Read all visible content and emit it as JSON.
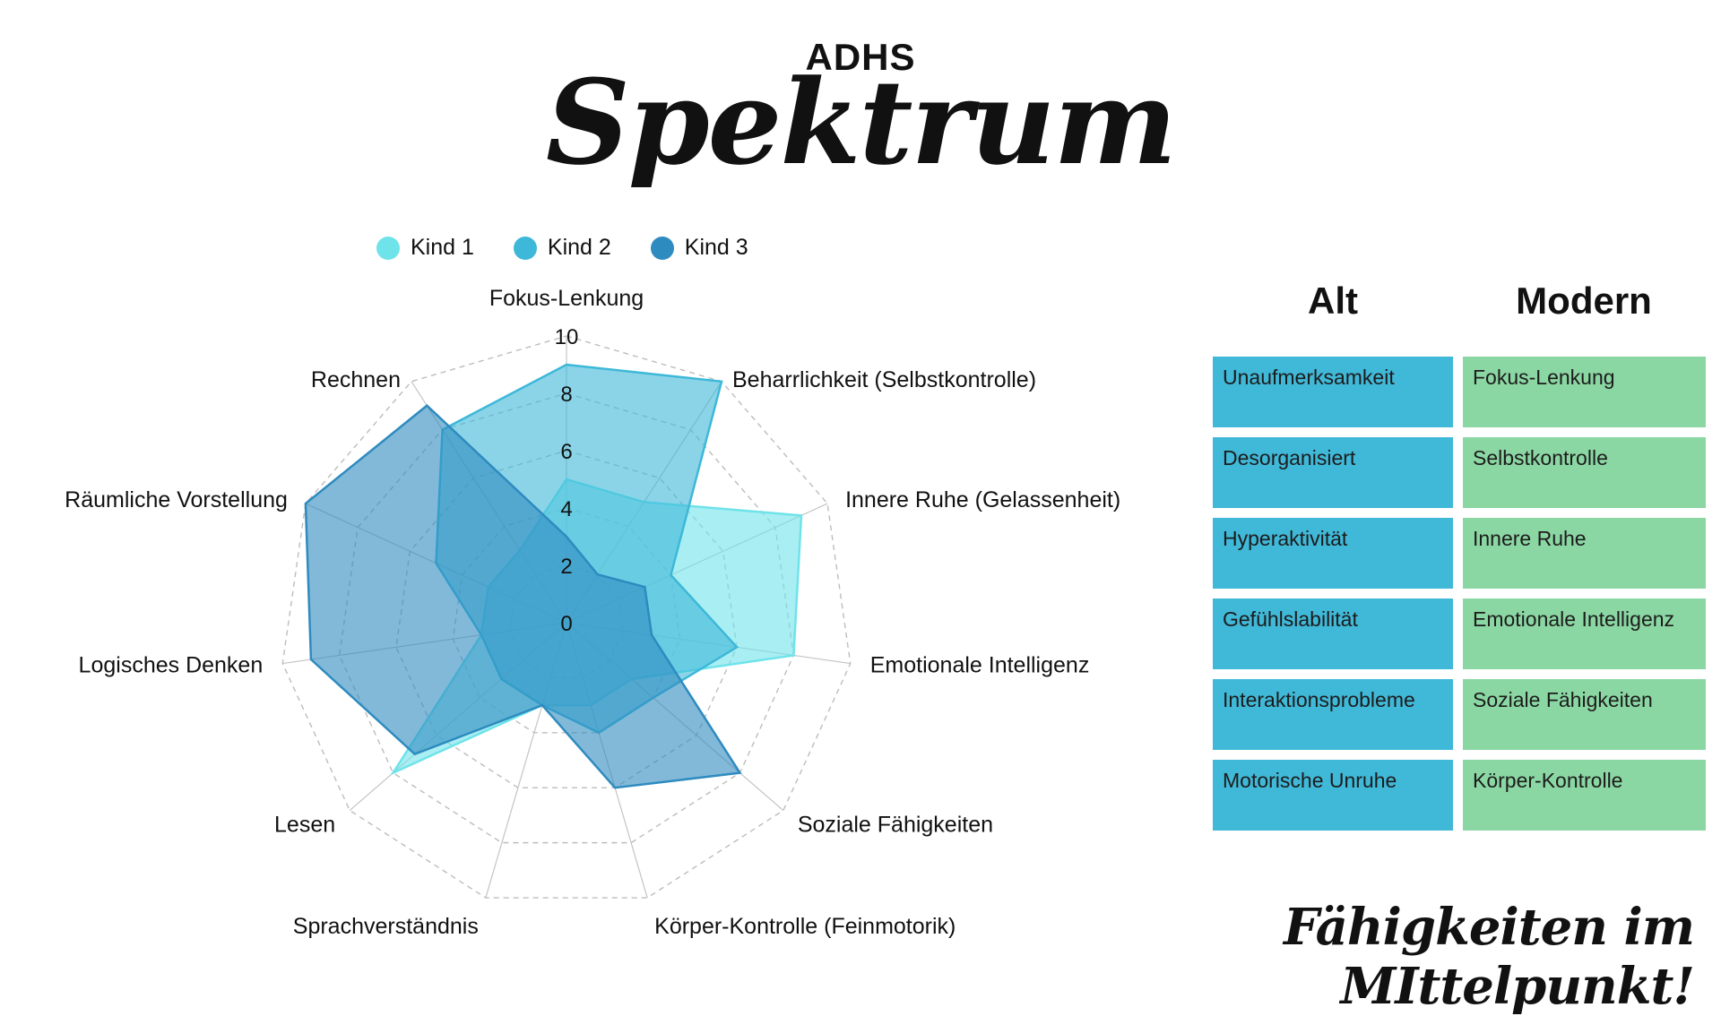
{
  "header": {
    "title_top": "ADHS",
    "title_main": "Spektrum"
  },
  "chart_data": {
    "type": "radar",
    "axes": [
      "Fokus-Lenkung",
      "Beharrlichkeit (Selbstkontrolle)",
      "Innere Ruhe (Gelassenheit)",
      "Emotionale Intelligenz",
      "Soziale Fähigkeiten",
      "Körper-Kontrolle (Feinmotorik)",
      "Sprachverständnis",
      "Lesen",
      "Logisches Denken",
      "Räumliche Vorstellung",
      "Rechnen"
    ],
    "scale": {
      "min": 0,
      "max": 10,
      "ticks": [
        "0",
        "2",
        "4",
        "6",
        "8",
        "10"
      ]
    },
    "series": [
      {
        "name": "Kind 1",
        "color": "#6fe3ea",
        "values": [
          5,
          5,
          9,
          8,
          3,
          3,
          3,
          8,
          3,
          3,
          3
        ]
      },
      {
        "name": "Kind 2",
        "color": "#3db8d8",
        "values": [
          9,
          10,
          4,
          6,
          4,
          4,
          3,
          3,
          3,
          5,
          8
        ]
      },
      {
        "name": "Kind 3",
        "color": "#2e8bbf",
        "values": [
          3,
          2,
          3,
          3,
          8,
          6,
          3,
          7,
          9,
          10,
          9
        ]
      }
    ],
    "legend_position": "top"
  },
  "legend": {
    "items": [
      {
        "label": "Kind 1",
        "color": "#6fe3ea"
      },
      {
        "label": "Kind 2",
        "color": "#3db8d8"
      },
      {
        "label": "Kind 3",
        "color": "#2e8bbf"
      }
    ]
  },
  "mapping": {
    "head_alt": "Alt",
    "head_modern": "Modern",
    "rows": [
      {
        "alt": "Unaufmerksamkeit",
        "modern": "Fokus-Lenkung"
      },
      {
        "alt": "Desorganisiert",
        "modern": "Selbstkontrolle"
      },
      {
        "alt": "Hyperaktivität",
        "modern": "Innere Ruhe"
      },
      {
        "alt": "Gefühlslabilität",
        "modern": "Emotionale Intelligenz"
      },
      {
        "alt": "Interaktionsprobleme",
        "modern": "Soziale Fähigkeiten"
      },
      {
        "alt": "Motorische Unruhe",
        "modern": "Körper-Kontrolle"
      }
    ]
  },
  "footer": {
    "slogan": "Fähigkeiten im MIttelpunkt!"
  }
}
